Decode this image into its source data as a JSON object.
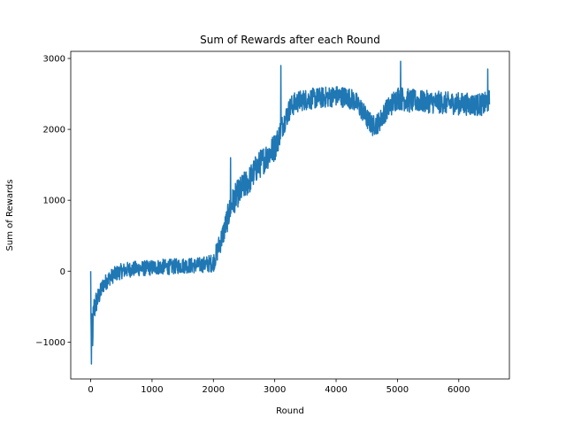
{
  "chart_data": {
    "type": "line",
    "title": "Sum of Rewards after each Round",
    "xlabel": "Round",
    "ylabel": "Sum of Rewards",
    "xlim": [
      -325,
      6825
    ],
    "ylim": [
      -1520,
      3100
    ],
    "xticks": [
      0,
      1000,
      2000,
      3000,
      4000,
      5000,
      6000
    ],
    "yticks": [
      -1000,
      0,
      1000,
      2000,
      3000
    ],
    "grid": false,
    "legend": "none",
    "series": [
      {
        "color": "#1f77b4",
        "x": [
          0,
          20,
          40,
          60,
          80,
          100,
          150,
          200,
          300,
          400,
          500,
          600,
          700,
          800,
          900,
          1000,
          1100,
          1200,
          1300,
          1400,
          1500,
          1600,
          1700,
          1800,
          1900,
          2000,
          2050,
          2100,
          2150,
          2200,
          2250,
          2300,
          2400,
          2500,
          2600,
          2700,
          2800,
          2900,
          3000,
          3050,
          3100,
          3150,
          3200,
          3250,
          3300,
          3400,
          3500,
          3600,
          3700,
          3800,
          3900,
          4000,
          4100,
          4200,
          4300,
          4400,
          4500,
          4600,
          4700,
          4800,
          4900,
          5000,
          5100,
          5200,
          5300,
          5400,
          5500,
          5600,
          5700,
          5800,
          5900,
          6000,
          6100,
          6200,
          6300,
          6400,
          6500
        ],
        "y": [
          -600,
          -950,
          -700,
          -550,
          -450,
          -420,
          -320,
          -200,
          -100,
          -40,
          0,
          20,
          30,
          40,
          40,
          50,
          60,
          60,
          60,
          70,
          80,
          80,
          80,
          90,
          100,
          120,
          250,
          380,
          500,
          650,
          800,
          950,
          1100,
          1200,
          1300,
          1450,
          1550,
          1650,
          1750,
          1850,
          2000,
          2100,
          2200,
          2300,
          2350,
          2400,
          2420,
          2430,
          2440,
          2450,
          2460,
          2470,
          2460,
          2450,
          2400,
          2300,
          2150,
          2050,
          2100,
          2250,
          2350,
          2450,
          2430,
          2400,
          2400,
          2390,
          2390,
          2380,
          2380,
          2370,
          2370,
          2360,
          2360,
          2350,
          2350,
          2350,
          2400
        ],
        "amplitude": [
          300,
          350,
          250,
          200,
          180,
          160,
          130,
          120,
          110,
          110,
          110,
          110,
          110,
          110,
          110,
          110,
          110,
          110,
          110,
          110,
          110,
          110,
          110,
          110,
          120,
          130,
          150,
          160,
          170,
          180,
          190,
          200,
          200,
          200,
          200,
          200,
          200,
          200,
          200,
          180,
          170,
          160,
          160,
          160,
          160,
          150,
          150,
          150,
          150,
          150,
          150,
          150,
          150,
          150,
          150,
          150,
          150,
          150,
          150,
          150,
          160,
          170,
          170,
          170,
          160,
          160,
          160,
          160,
          160,
          160,
          160,
          160,
          160,
          160,
          160,
          160,
          160
        ],
        "spikes": [
          [
            0,
            0
          ],
          [
            10,
            -1310
          ],
          [
            30,
            -1050
          ],
          [
            55,
            -400
          ],
          [
            2280,
            1600
          ],
          [
            2430,
            1000
          ],
          [
            3100,
            2900
          ],
          [
            5050,
            2960
          ],
          [
            6470,
            2850
          ],
          [
            6530,
            1980
          ]
        ]
      }
    ]
  }
}
